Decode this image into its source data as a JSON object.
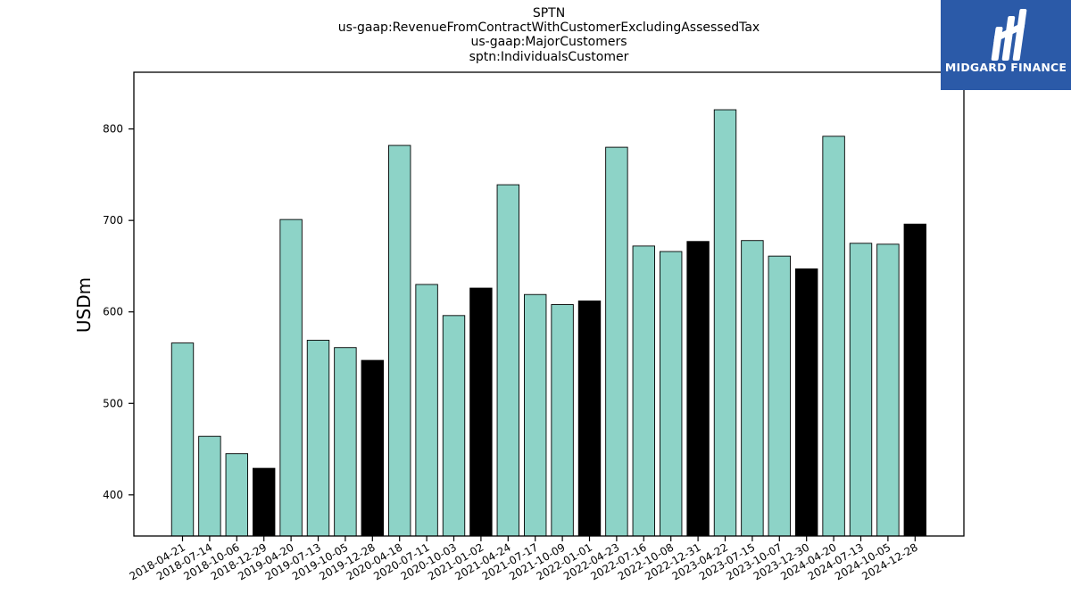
{
  "header": {
    "title_lines": [
      "SPTN",
      "us-gaap:RevenueFromContractWithCustomerExcludingAssessedTax",
      "us-gaap:MajorCustomers",
      "sptn:IndividualsCustomer"
    ]
  },
  "logo": {
    "text": "MIDGARD FINANCE",
    "bg_color": "#2b5aa8"
  },
  "chart_data": {
    "type": "bar",
    "ylabel": "USDm",
    "xlabel": "",
    "ylim": [
      355,
      862
    ],
    "yticks": [
      400,
      500,
      600,
      700,
      800
    ],
    "grid": false,
    "colors": {
      "regular": "#8dd3c7",
      "year_end": "#000000"
    },
    "categories": [
      "2018-04-21",
      "2018-07-14",
      "2018-10-06",
      "2018-12-29",
      "2019-04-20",
      "2019-07-13",
      "2019-10-05",
      "2019-12-28",
      "2020-04-18",
      "2020-07-11",
      "2020-10-03",
      "2021-01-02",
      "2021-04-24",
      "2021-07-17",
      "2021-10-09",
      "2022-01-01",
      "2022-04-23",
      "2022-07-16",
      "2022-10-08",
      "2022-12-31",
      "2023-04-22",
      "2023-07-15",
      "2023-10-07",
      "2023-12-30",
      "2024-04-20",
      "2024-07-13",
      "2024-10-05",
      "2024-12-28"
    ],
    "values": [
      566,
      464,
      445,
      429,
      701,
      569,
      561,
      547,
      782,
      630,
      596,
      626,
      739,
      619,
      608,
      612,
      780,
      672,
      666,
      677,
      821,
      678,
      661,
      647,
      792,
      675,
      674,
      696
    ],
    "highlight": [
      false,
      false,
      false,
      true,
      false,
      false,
      false,
      true,
      false,
      false,
      false,
      true,
      false,
      false,
      false,
      true,
      false,
      false,
      false,
      true,
      false,
      false,
      false,
      true,
      false,
      false,
      false,
      true
    ]
  }
}
